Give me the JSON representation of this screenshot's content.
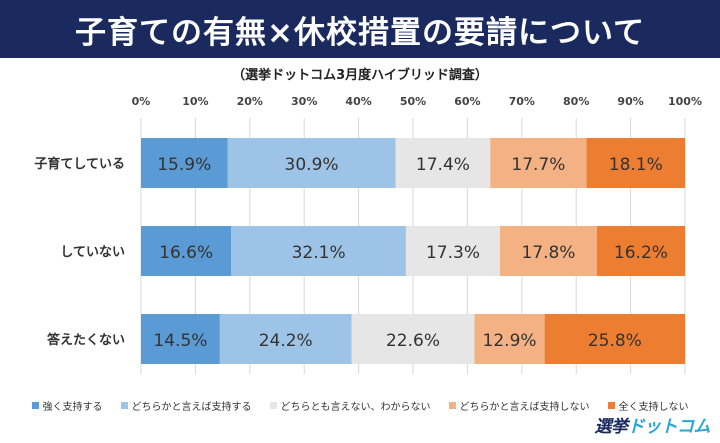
{
  "banner": {
    "title": "子育ての有無×休校措置の要請について"
  },
  "chart_data": {
    "type": "bar",
    "orientation": "horizontal",
    "stacked": true,
    "percent": true,
    "subtitle": "（選挙ドットコム3月度ハイブリッド調査）",
    "categories": [
      "子育てしている",
      "していない",
      "答えたくない"
    ],
    "xlim": [
      0,
      100
    ],
    "x_ticks": [
      "0%",
      "10%",
      "20%",
      "30%",
      "40%",
      "50%",
      "60%",
      "70%",
      "80%",
      "90%",
      "100%"
    ],
    "x_axis_position": "top",
    "grid": true,
    "legend_position": "bottom",
    "series": [
      {
        "name": "強く支持する",
        "color": "#5b9bd5",
        "values": [
          15.9,
          16.6,
          14.5
        ],
        "labels": [
          "15.9%",
          "16.6%",
          "14.5%"
        ]
      },
      {
        "name": "どちらかと言えば支持する",
        "color": "#9dc3e6",
        "values": [
          30.9,
          32.1,
          24.2
        ],
        "labels": [
          "30.9%",
          "32.1%",
          "24.2%"
        ]
      },
      {
        "name": "どちらとも言えない、わからない",
        "color": "#e7e6e6",
        "values": [
          17.4,
          17.3,
          22.6
        ],
        "labels": [
          "17.4%",
          "17.3%",
          "22.6%"
        ]
      },
      {
        "name": "どちらかと言えば支持しない",
        "color": "#f4b183",
        "values": [
          17.7,
          17.8,
          12.9
        ],
        "labels": [
          "17.7%",
          "17.8%",
          "12.9%"
        ]
      },
      {
        "name": "全く支持しない",
        "color": "#ed7d31",
        "values": [
          18.1,
          16.2,
          25.8
        ],
        "labels": [
          "18.1%",
          "16.2%",
          "25.8%"
        ]
      }
    ]
  },
  "logo": {
    "main": "選挙",
    "accent": "ドットコム"
  }
}
